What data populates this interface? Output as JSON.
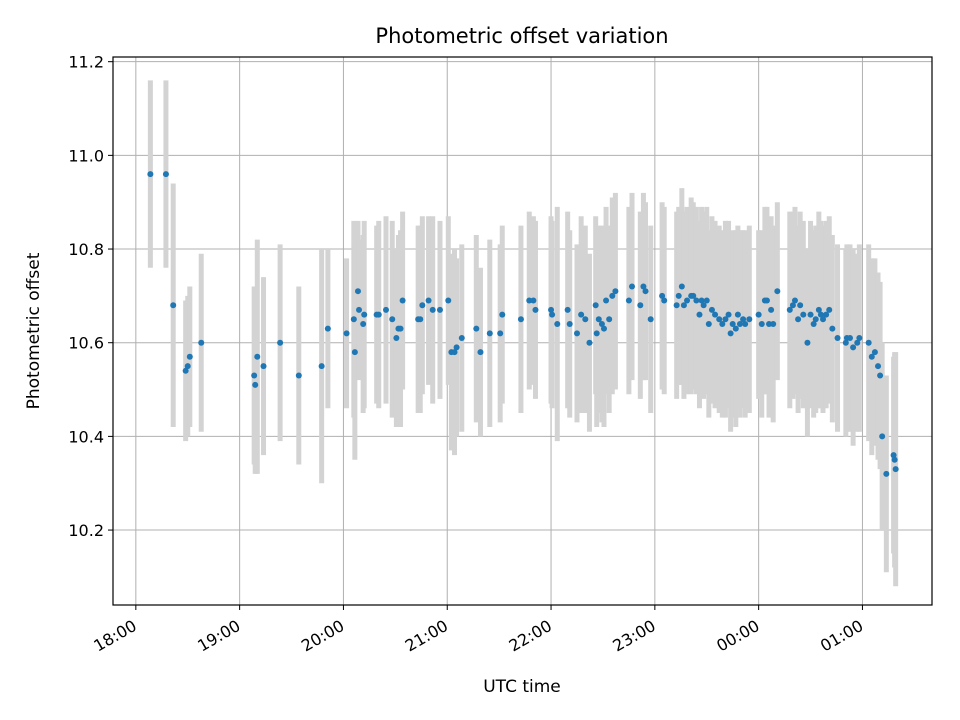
{
  "chart_data": {
    "type": "scatter",
    "title": "Photometric offset variation",
    "xlabel": "UTC time",
    "ylabel": "Photometric offset",
    "grid": true,
    "xlim_hours": [
      17.78,
      25.67
    ],
    "ylim": [
      10.04,
      11.21
    ],
    "xticks": [
      {
        "label": "18:00",
        "h": 18
      },
      {
        "label": "19:00",
        "h": 19
      },
      {
        "label": "20:00",
        "h": 20
      },
      {
        "label": "21:00",
        "h": 21
      },
      {
        "label": "22:00",
        "h": 22
      },
      {
        "label": "23:00",
        "h": 23
      },
      {
        "label": "00:00",
        "h": 24
      },
      {
        "label": "01:00",
        "h": 25
      }
    ],
    "yticks": [
      10.2,
      10.4,
      10.6,
      10.8,
      11.0,
      11.2
    ],
    "colors": {
      "point": "#1f77b4",
      "errorbar": "#d3d3d3",
      "grid": "#b0b0b0"
    },
    "series": [
      {
        "name": "",
        "points": [
          [
            18.14,
            10.96,
            0.2
          ],
          [
            18.29,
            10.96,
            0.2
          ],
          [
            18.36,
            10.68,
            0.26
          ],
          [
            18.48,
            10.54,
            0.15
          ],
          [
            18.5,
            10.55,
            0.15
          ],
          [
            18.52,
            10.57,
            0.15
          ],
          [
            18.63,
            10.6,
            0.19
          ],
          [
            19.14,
            10.53,
            0.19
          ],
          [
            19.15,
            10.51,
            0.19
          ],
          [
            19.17,
            10.57,
            0.25
          ],
          [
            19.23,
            10.55,
            0.19
          ],
          [
            19.39,
            10.6,
            0.21
          ],
          [
            19.57,
            10.53,
            0.19
          ],
          [
            19.79,
            10.55,
            0.25
          ],
          [
            19.85,
            10.63,
            0.17
          ],
          [
            20.03,
            10.62,
            0.16
          ],
          [
            20.1,
            10.65,
            0.21
          ],
          [
            20.11,
            10.58,
            0.23
          ],
          [
            20.14,
            10.71,
            0.15
          ],
          [
            20.15,
            10.67,
            0.15
          ],
          [
            20.19,
            10.64,
            0.19
          ],
          [
            20.2,
            10.66,
            0.2
          ],
          [
            20.32,
            10.66,
            0.19
          ],
          [
            20.34,
            10.66,
            0.2
          ],
          [
            20.41,
            10.67,
            0.2
          ],
          [
            20.47,
            10.65,
            0.21
          ],
          [
            20.51,
            10.61,
            0.19
          ],
          [
            20.53,
            10.63,
            0.2
          ],
          [
            20.55,
            10.63,
            0.21
          ],
          [
            20.57,
            10.69,
            0.19
          ],
          [
            20.72,
            10.65,
            0.2
          ],
          [
            20.74,
            10.65,
            0.2
          ],
          [
            20.76,
            10.68,
            0.19
          ],
          [
            20.82,
            10.69,
            0.18
          ],
          [
            20.86,
            10.67,
            0.2
          ],
          [
            20.93,
            10.67,
            0.19
          ],
          [
            21.01,
            10.69,
            0.18
          ],
          [
            21.04,
            10.58,
            0.21
          ],
          [
            21.07,
            10.58,
            0.22
          ],
          [
            21.09,
            10.59,
            0.19
          ],
          [
            21.14,
            10.61,
            0.2
          ],
          [
            21.28,
            10.63,
            0.2
          ],
          [
            21.32,
            10.58,
            0.18
          ],
          [
            21.41,
            10.62,
            0.2
          ],
          [
            21.51,
            10.62,
            0.19
          ],
          [
            21.53,
            10.66,
            0.19
          ],
          [
            21.71,
            10.65,
            0.2
          ],
          [
            21.79,
            10.69,
            0.19
          ],
          [
            21.85,
            10.67,
            0.19
          ],
          [
            21.83,
            10.69,
            0.18
          ],
          [
            22.0,
            10.67,
            0.2
          ],
          [
            22.01,
            10.66,
            0.2
          ],
          [
            22.06,
            10.64,
            0.25
          ],
          [
            22.16,
            10.67,
            0.21
          ],
          [
            22.18,
            10.64,
            0.2
          ],
          [
            22.25,
            10.62,
            0.19
          ],
          [
            22.29,
            10.66,
            0.21
          ],
          [
            22.33,
            10.65,
            0.2
          ],
          [
            22.37,
            10.6,
            0.19
          ],
          [
            22.43,
            10.68,
            0.19
          ],
          [
            22.44,
            10.62,
            0.2
          ],
          [
            22.46,
            10.65,
            0.2
          ],
          [
            22.49,
            10.64,
            0.21
          ],
          [
            22.51,
            10.63,
            0.21
          ],
          [
            22.53,
            10.69,
            0.2
          ],
          [
            22.56,
            10.65,
            0.2
          ],
          [
            22.59,
            10.7,
            0.21
          ],
          [
            22.62,
            10.71,
            0.21
          ],
          [
            22.75,
            10.69,
            0.2
          ],
          [
            22.78,
            10.72,
            0.2
          ],
          [
            22.86,
            10.68,
            0.2
          ],
          [
            22.89,
            10.72,
            0.2
          ],
          [
            22.91,
            10.71,
            0.19
          ],
          [
            22.96,
            10.65,
            0.2
          ],
          [
            23.07,
            10.7,
            0.2
          ],
          [
            23.09,
            10.69,
            0.2
          ],
          [
            23.21,
            10.68,
            0.2
          ],
          [
            23.23,
            10.7,
            0.19
          ],
          [
            23.26,
            10.72,
            0.21
          ],
          [
            23.28,
            10.68,
            0.2
          ],
          [
            23.31,
            10.69,
            0.2
          ],
          [
            23.35,
            10.7,
            0.21
          ],
          [
            23.37,
            10.7,
            0.2
          ],
          [
            23.4,
            10.69,
            0.2
          ],
          [
            23.43,
            10.66,
            0.2
          ],
          [
            23.45,
            10.69,
            0.2
          ],
          [
            23.47,
            10.68,
            0.2
          ],
          [
            23.5,
            10.69,
            0.2
          ],
          [
            23.52,
            10.64,
            0.2
          ],
          [
            23.55,
            10.67,
            0.2
          ],
          [
            23.58,
            10.66,
            0.2
          ],
          [
            23.62,
            10.65,
            0.2
          ],
          [
            23.65,
            10.64,
            0.2
          ],
          [
            23.68,
            10.65,
            0.21
          ],
          [
            23.71,
            10.66,
            0.2
          ],
          [
            23.73,
            10.62,
            0.21
          ],
          [
            23.75,
            10.64,
            0.2
          ],
          [
            23.78,
            10.63,
            0.21
          ],
          [
            23.8,
            10.66,
            0.19
          ],
          [
            23.82,
            10.64,
            0.2
          ],
          [
            23.85,
            10.65,
            0.19
          ],
          [
            23.87,
            10.64,
            0.2
          ],
          [
            23.91,
            10.65,
            0.2
          ],
          [
            24.0,
            10.66,
            0.18
          ],
          [
            24.03,
            10.64,
            0.2
          ],
          [
            24.06,
            10.69,
            0.2
          ],
          [
            24.08,
            10.69,
            0.2
          ],
          [
            24.1,
            10.64,
            0.2
          ],
          [
            24.12,
            10.67,
            0.2
          ],
          [
            24.14,
            10.64,
            0.21
          ],
          [
            24.18,
            10.71,
            0.19
          ],
          [
            24.3,
            10.67,
            0.21
          ],
          [
            24.33,
            10.68,
            0.2
          ],
          [
            24.35,
            10.69,
            0.2
          ],
          [
            24.38,
            10.65,
            0.2
          ],
          [
            24.4,
            10.68,
            0.2
          ],
          [
            24.43,
            10.66,
            0.2
          ],
          [
            24.47,
            10.6,
            0.2
          ],
          [
            24.5,
            10.66,
            0.2
          ],
          [
            24.53,
            10.64,
            0.2
          ],
          [
            24.55,
            10.65,
            0.2
          ],
          [
            24.58,
            10.67,
            0.21
          ],
          [
            24.6,
            10.66,
            0.2
          ],
          [
            24.62,
            10.65,
            0.2
          ],
          [
            24.65,
            10.66,
            0.2
          ],
          [
            24.68,
            10.67,
            0.2
          ],
          [
            24.71,
            10.63,
            0.2
          ],
          [
            24.76,
            10.61,
            0.2
          ],
          [
            24.84,
            10.6,
            0.2
          ],
          [
            24.85,
            10.61,
            0.2
          ],
          [
            24.88,
            10.61,
            0.2
          ],
          [
            24.91,
            10.59,
            0.21
          ],
          [
            24.95,
            10.6,
            0.19
          ],
          [
            24.97,
            10.61,
            0.2
          ],
          [
            25.06,
            10.6,
            0.21
          ],
          [
            25.09,
            10.57,
            0.21
          ],
          [
            25.12,
            10.58,
            0.2
          ],
          [
            25.15,
            10.55,
            0.2
          ],
          [
            25.17,
            10.53,
            0.2
          ],
          [
            25.19,
            10.4,
            0.2
          ],
          [
            25.23,
            10.32,
            0.21
          ],
          [
            25.3,
            10.36,
            0.21
          ],
          [
            25.31,
            10.35,
            0.23
          ],
          [
            25.32,
            10.33,
            0.25
          ]
        ]
      }
    ]
  }
}
